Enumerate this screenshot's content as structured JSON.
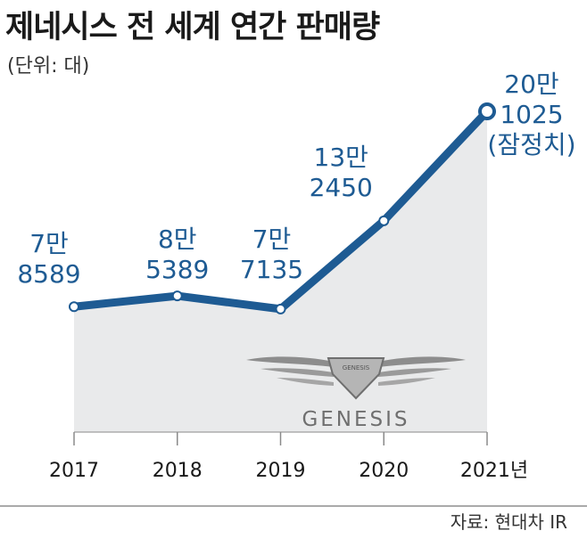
{
  "title": "제네시스 전 세계 연간 판매량",
  "unit": "(단위: 대)",
  "source": "자료: 현대차 IR",
  "logo": {
    "name": "GENESIS"
  },
  "colors": {
    "line": "#1e5b93",
    "area": "#e9eaeb",
    "axis": "#8a8a8a"
  },
  "chart_data": {
    "type": "area",
    "x": [
      "2017",
      "2018",
      "2019",
      "2020",
      "2021년"
    ],
    "values": [
      78589,
      85389,
      77135,
      132450,
      201025
    ],
    "value_labels": [
      [
        "7만",
        "8589"
      ],
      [
        "8만",
        "5389"
      ],
      [
        "7만",
        "7135"
      ],
      [
        "13만",
        "2450"
      ],
      [
        "20만",
        "1025",
        "(잠정치)"
      ]
    ],
    "ylim": [
      0,
      215000
    ],
    "grid": false,
    "legend": "none"
  }
}
